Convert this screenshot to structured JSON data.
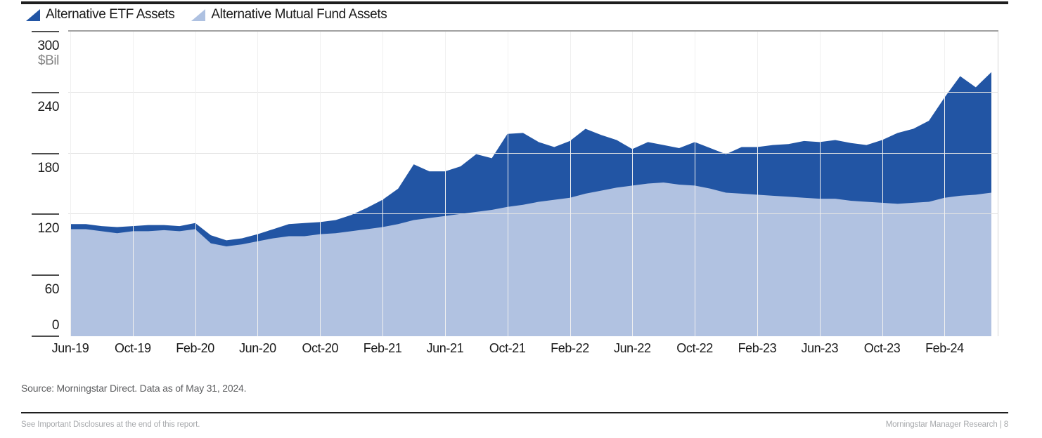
{
  "legend": {
    "items": [
      {
        "label": "Alternative ETF Assets",
        "color": "#2255a4"
      },
      {
        "label": "Alternative Mutual Fund Assets",
        "color": "#aec1e1"
      }
    ]
  },
  "chart_data": {
    "type": "area",
    "stacked": true,
    "title": "",
    "ylabel": "$Bil",
    "ylim": [
      0,
      300
    ],
    "y_ticks": [
      0,
      60,
      120,
      180,
      240,
      300
    ],
    "gridlines_at": [
      120,
      180,
      240
    ],
    "grid": "horizontal-light",
    "legend_position": "top-left",
    "frequency": "monthly",
    "x_tick_labels": [
      "Jun-19",
      "Oct-19",
      "Feb-20",
      "Jun-20",
      "Oct-20",
      "Feb-21",
      "Jun-21",
      "Oct-21",
      "Feb-22",
      "Jun-22",
      "Oct-22",
      "Feb-23",
      "Jun-23",
      "Oct-23",
      "Feb-24"
    ],
    "x": [
      "Jun-19",
      "Jul-19",
      "Aug-19",
      "Sep-19",
      "Oct-19",
      "Nov-19",
      "Dec-19",
      "Jan-20",
      "Feb-20",
      "Mar-20",
      "Apr-20",
      "May-20",
      "Jun-20",
      "Jul-20",
      "Aug-20",
      "Sep-20",
      "Oct-20",
      "Nov-20",
      "Dec-20",
      "Jan-21",
      "Feb-21",
      "Mar-21",
      "Apr-21",
      "May-21",
      "Jun-21",
      "Jul-21",
      "Aug-21",
      "Sep-21",
      "Oct-21",
      "Nov-21",
      "Dec-21",
      "Jan-22",
      "Feb-22",
      "Mar-22",
      "Apr-22",
      "May-22",
      "Jun-22",
      "Jul-22",
      "Aug-22",
      "Sep-22",
      "Oct-22",
      "Nov-22",
      "Dec-22",
      "Jan-23",
      "Feb-23",
      "Mar-23",
      "Apr-23",
      "May-23",
      "Jun-23",
      "Jul-23",
      "Aug-23",
      "Sep-23",
      "Oct-23",
      "Nov-23",
      "Dec-23",
      "Jan-24",
      "Feb-24",
      "Mar-24",
      "Apr-24",
      "May-24"
    ],
    "series": [
      {
        "name": "Alternative Mutual Fund Assets",
        "color": "#b1c2e1",
        "values": [
          105,
          105,
          103,
          101,
          103,
          103,
          104,
          103,
          105,
          91,
          88,
          90,
          93,
          96,
          98,
          98,
          100,
          101,
          103,
          105,
          107,
          110,
          114,
          116,
          118,
          120,
          122,
          124,
          127,
          129,
          132,
          134,
          136,
          140,
          143,
          146,
          148,
          150,
          151,
          149,
          148,
          145,
          141,
          140,
          139,
          138,
          137,
          136,
          135,
          135,
          133,
          132,
          131,
          130,
          131,
          132,
          136,
          138,
          139,
          141
        ]
      },
      {
        "name": "Alternative ETF Assets",
        "color": "#2255a4",
        "values": [
          5,
          5,
          5,
          6,
          5,
          6,
          5,
          5,
          6,
          8,
          6,
          6,
          7,
          9,
          12,
          13,
          12,
          13,
          16,
          21,
          27,
          35,
          55,
          46,
          44,
          47,
          57,
          51,
          72,
          71,
          59,
          52,
          56,
          64,
          55,
          47,
          36,
          41,
          37,
          36,
          43,
          40,
          38,
          46,
          47,
          50,
          52,
          56,
          56,
          58,
          57,
          56,
          62,
          70,
          73,
          80,
          99,
          118,
          106,
          119
        ]
      }
    ],
    "source_note": "Source: Morningstar Direct. Data as of May 31, 2024."
  },
  "footer": {
    "left": "See Important Disclosures at the end of this report.",
    "right": "Morningstar Manager Research | 8"
  }
}
